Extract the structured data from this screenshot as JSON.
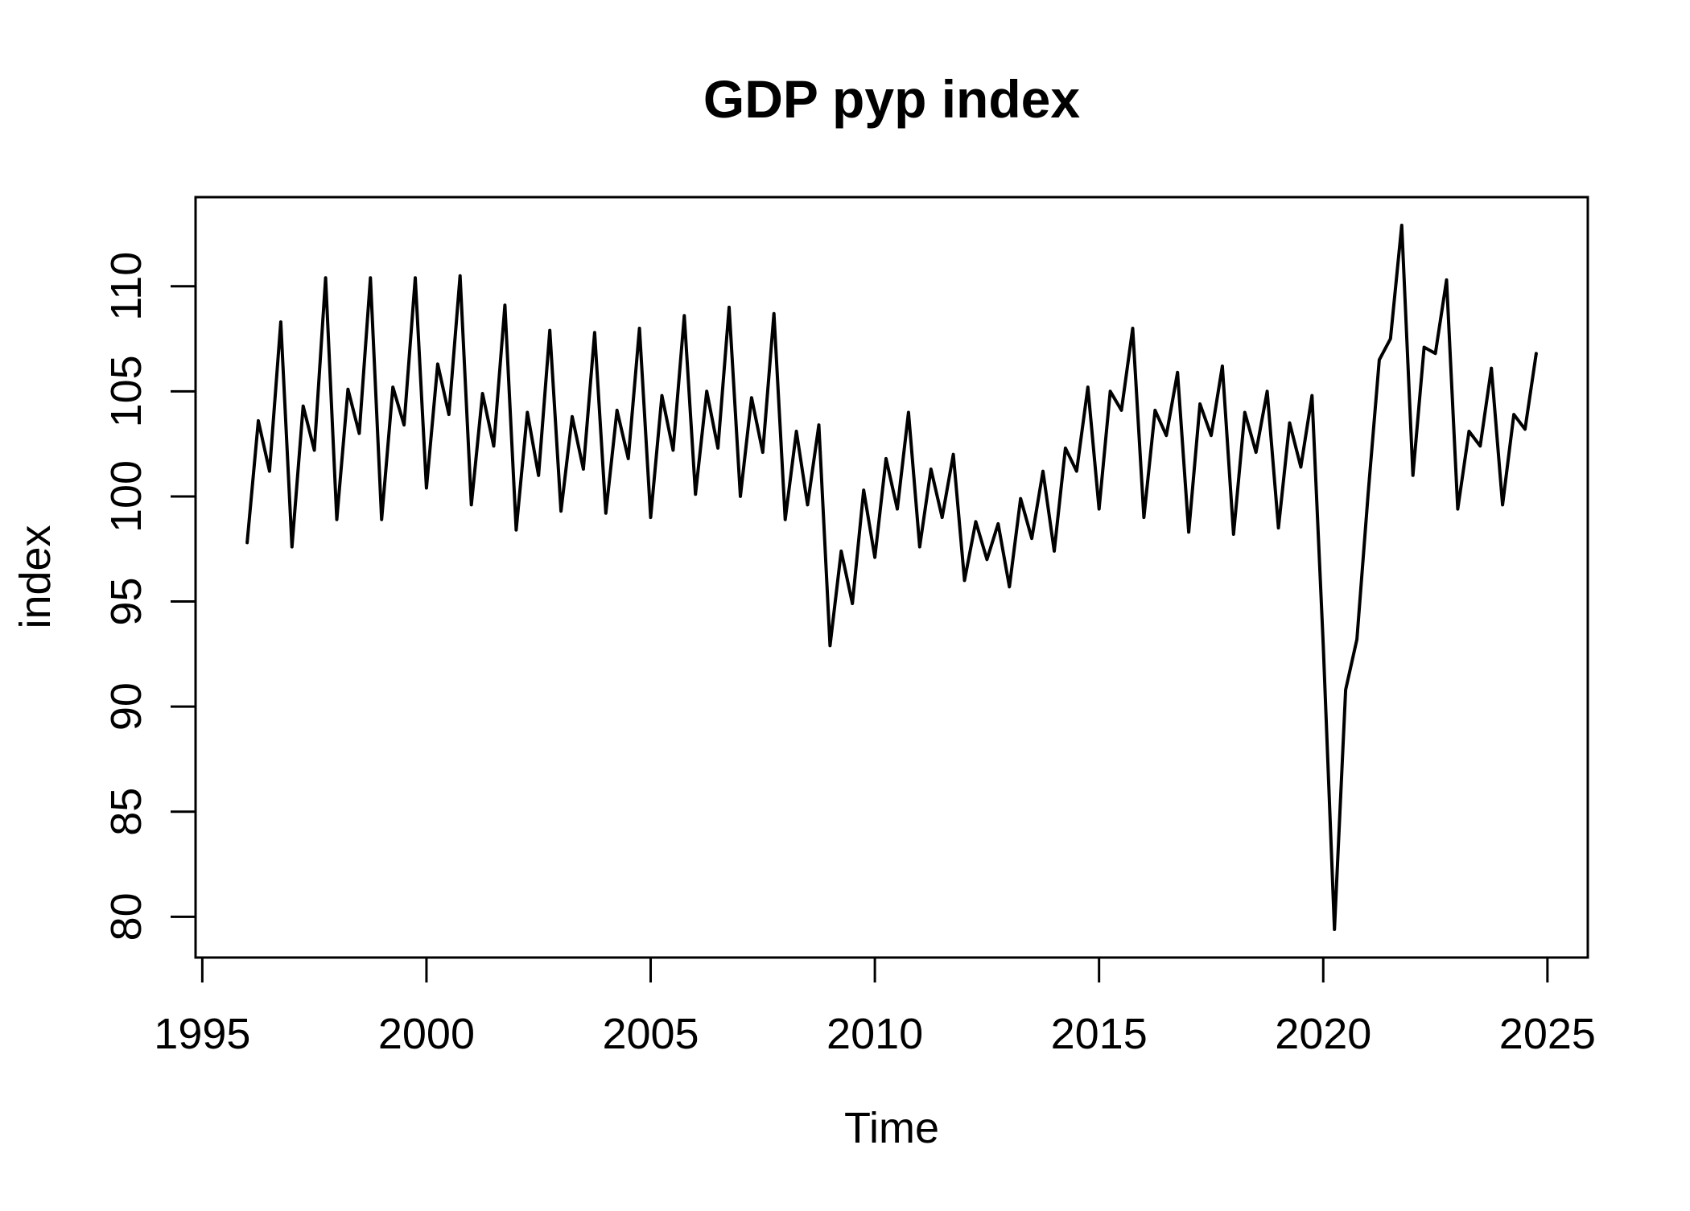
{
  "figure": {
    "background": "#ffffff",
    "line_color": "#000000",
    "axis_color": "#000000"
  },
  "chart_data": {
    "type": "line",
    "title": "GDP pyp index",
    "xlabel": "Time",
    "ylabel": "index",
    "grid": false,
    "legend": "none",
    "xlim": [
      1994.85,
      2025.9
    ],
    "ylim": [
      78.06,
      114.24
    ],
    "x_ticks": [
      1995,
      2000,
      2005,
      2010,
      2015,
      2020,
      2025
    ],
    "y_ticks": [
      80,
      85,
      90,
      95,
      100,
      105,
      110
    ],
    "frequency": "quarterly",
    "x_start": 1996.0,
    "x_step": 0.25,
    "start_period": "1996 Q1",
    "end_period": "2024 Q4",
    "n_observations": 116,
    "series": [
      {
        "name": "GDP pyp index",
        "values": [
          97.8,
          103.6,
          101.2,
          108.3,
          97.6,
          104.3,
          102.2,
          110.4,
          98.9,
          105.1,
          103.0,
          110.4,
          98.9,
          105.2,
          103.4,
          110.4,
          100.4,
          106.3,
          103.9,
          110.5,
          99.6,
          104.9,
          102.4,
          109.1,
          98.4,
          104.0,
          101.0,
          107.9,
          99.3,
          103.8,
          101.3,
          107.8,
          99.2,
          104.1,
          101.8,
          108.0,
          99.0,
          104.8,
          102.2,
          108.6,
          100.1,
          105.0,
          102.3,
          109.0,
          100.0,
          104.7,
          102.1,
          108.7,
          98.9,
          103.1,
          99.6,
          103.4,
          92.9,
          97.4,
          94.9,
          100.3,
          97.1,
          101.8,
          99.4,
          104.0,
          97.6,
          101.3,
          99.0,
          102.0,
          96.0,
          98.8,
          97.0,
          98.7,
          95.7,
          99.9,
          98.0,
          101.2,
          97.4,
          102.3,
          101.2,
          105.2,
          99.4,
          105.0,
          104.1,
          108.0,
          99.0,
          104.1,
          102.9,
          105.9,
          98.3,
          104.4,
          102.9,
          106.2,
          98.2,
          104.0,
          102.1,
          105.0,
          98.5,
          103.5,
          101.4,
          104.8,
          92.9,
          79.4,
          90.8,
          93.2,
          100.1,
          106.5,
          107.5,
          112.9,
          101.0,
          107.1,
          106.8,
          110.3,
          99.4,
          103.1,
          102.4,
          106.1,
          99.6,
          103.9,
          103.2,
          106.8
        ]
      }
    ]
  }
}
